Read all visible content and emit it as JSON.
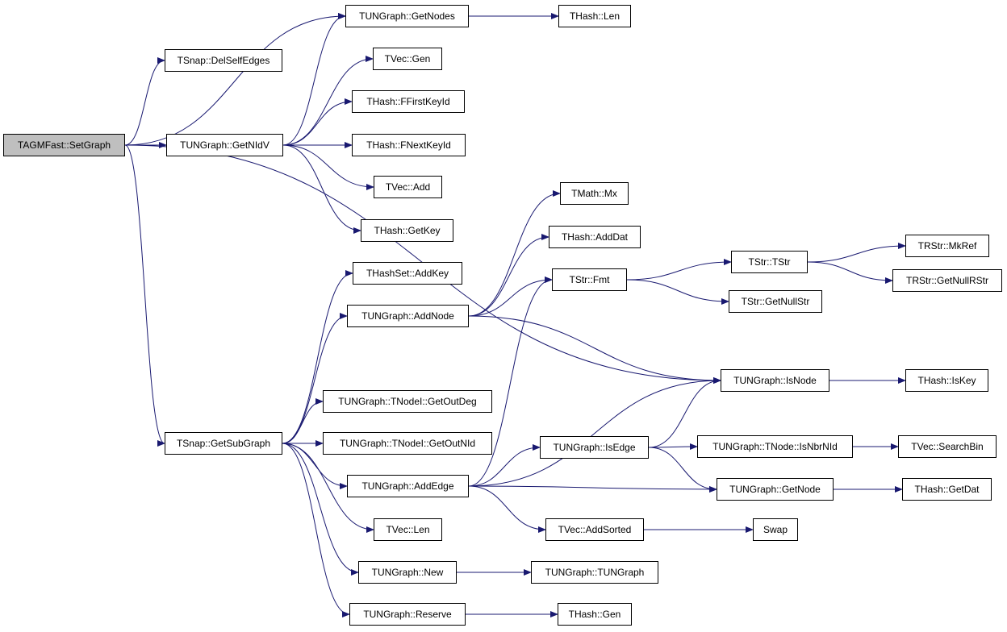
{
  "colors": {
    "edge": "#191970",
    "root_fill": "#bfbfbf",
    "node_fill": "#ffffff",
    "border": "#000000"
  },
  "nodes": {
    "setgraph": "TAGMFast::SetGraph",
    "delselfedges": "TSnap::DelSelfEdges",
    "getnodes": "TUNGraph::GetNodes",
    "hashlen": "THash::Len",
    "vecgen": "TVec::Gen",
    "ffirstkeyid": "THash::FFirstKeyId",
    "getnidv": "TUNGraph::GetNIdV",
    "fnextkeyid": "THash::FNextKeyId",
    "vecadd": "TVec::Add",
    "getkey": "THash::GetKey",
    "hashsetaddkey": "THashSet::AddKey",
    "addnode": "TUNGraph::AddNode",
    "mx": "TMath::Mx",
    "adddat": "THash::AddDat",
    "fmt": "TStr::Fmt",
    "tstr": "TStr::TStr",
    "mkref": "TRStr::MkRef",
    "getnullrstr": "TRStr::GetNullRStr",
    "getnullstr": "TStr::GetNullStr",
    "isnode": "TUNGraph::IsNode",
    "iskey": "THash::IsKey",
    "isedge": "TUNGraph::IsEdge",
    "isnbrnid": "TUNGraph::TNode::IsNbrNId",
    "searchbin": "TVec::SearchBin",
    "getnode": "TUNGraph::GetNode",
    "getdat": "THash::GetDat",
    "getsubgraph": "TSnap::GetSubGraph",
    "getoutdeg": "TUNGraph::TNodeI::GetOutDeg",
    "getoutnid": "TUNGraph::TNodeI::GetOutNId",
    "addedge": "TUNGraph::AddEdge",
    "veclen": "TVec::Len",
    "addsorted": "TVec::AddSorted",
    "swap": "Swap",
    "new": "TUNGraph::New",
    "ctor": "TUNGraph::TUNGraph",
    "reserve": "TUNGraph::Reserve",
    "hashgen": "THash::Gen"
  },
  "edges": [
    [
      "setgraph",
      "delselfedges"
    ],
    [
      "setgraph",
      "getnodes"
    ],
    [
      "setgraph",
      "getnidv"
    ],
    [
      "setgraph",
      "getsubgraph"
    ],
    [
      "setgraph",
      "isnode"
    ],
    [
      "getnidv",
      "getnodes"
    ],
    [
      "getnidv",
      "vecgen"
    ],
    [
      "getnidv",
      "ffirstkeyid"
    ],
    [
      "getnidv",
      "fnextkeyid"
    ],
    [
      "getnidv",
      "vecadd"
    ],
    [
      "getnidv",
      "getkey"
    ],
    [
      "getnodes",
      "hashlen"
    ],
    [
      "getsubgraph",
      "hashsetaddkey"
    ],
    [
      "getsubgraph",
      "addnode"
    ],
    [
      "getsubgraph",
      "getoutdeg"
    ],
    [
      "getsubgraph",
      "getoutnid"
    ],
    [
      "getsubgraph",
      "addedge"
    ],
    [
      "getsubgraph",
      "veclen"
    ],
    [
      "getsubgraph",
      "new"
    ],
    [
      "getsubgraph",
      "reserve"
    ],
    [
      "addnode",
      "mx"
    ],
    [
      "addnode",
      "adddat"
    ],
    [
      "addnode",
      "fmt"
    ],
    [
      "addnode",
      "isnode"
    ],
    [
      "fmt",
      "tstr"
    ],
    [
      "fmt",
      "getnullstr"
    ],
    [
      "tstr",
      "mkref"
    ],
    [
      "tstr",
      "getnullrstr"
    ],
    [
      "isnode",
      "iskey"
    ],
    [
      "addedge",
      "fmt"
    ],
    [
      "addedge",
      "isnode"
    ],
    [
      "addedge",
      "isedge"
    ],
    [
      "addedge",
      "getnode"
    ],
    [
      "addedge",
      "addsorted"
    ],
    [
      "isedge",
      "isnode"
    ],
    [
      "isedge",
      "isnbrnid"
    ],
    [
      "isedge",
      "getnode"
    ],
    [
      "isnbrnid",
      "searchbin"
    ],
    [
      "getnode",
      "getdat"
    ],
    [
      "addsorted",
      "swap"
    ],
    [
      "new",
      "ctor"
    ],
    [
      "reserve",
      "hashgen"
    ]
  ]
}
